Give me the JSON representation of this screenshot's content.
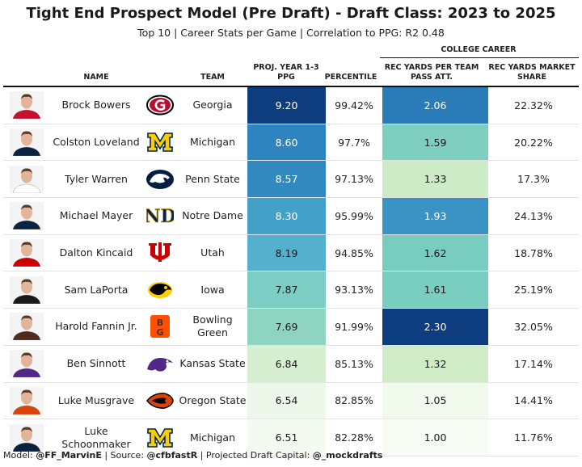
{
  "title": "Tight End Prospect Model (Pre Draft) - Draft Class: 2023 to 2025",
  "subtitle": "Top 10 | Career Stats per Game | Correlation to PPG: R2 0.48",
  "spanner": "COLLEGE CAREER",
  "headers": {
    "name": "NAME",
    "team": "TEAM",
    "proj": "PROJ. YEAR 1-3 PPG",
    "percentile": "PERCENTILE",
    "rec_yards": "REC YARDS PER TEAM PASS ATT.",
    "market_share": "REC YARDS MARKET SHARE"
  },
  "rows": [
    {
      "name": "Brock Bowers",
      "team": "Georgia",
      "logo": "georgia-logo",
      "proj": "9.20",
      "proj_bg": "#0d3c7f",
      "proj_fg": "#ffffff",
      "percentile": "99.42%",
      "rec": "2.06",
      "rec_bg": "#2a7cb8",
      "rec_fg": "#ffffff",
      "share": "22.32%",
      "jersey": "#c8102e"
    },
    {
      "name": "Colston Loveland",
      "team": "Michigan",
      "logo": "michigan-logo",
      "proj": "8.60",
      "proj_bg": "#2e84be",
      "proj_fg": "#ffffff",
      "percentile": "97.7%",
      "rec": "1.59",
      "rec_bg": "#7ecfbf",
      "rec_fg": "#1a1a1a",
      "share": "20.22%",
      "jersey": "#0a2240"
    },
    {
      "name": "Tyler Warren",
      "team": "Penn State",
      "logo": "penn-state-logo",
      "proj": "8.57",
      "proj_bg": "#3189c0",
      "proj_fg": "#ffffff",
      "percentile": "97.13%",
      "rec": "1.33",
      "rec_bg": "#cdebc6",
      "rec_fg": "#1a1a1a",
      "share": "17.3%",
      "jersey": "#ffffff"
    },
    {
      "name": "Michael Mayer",
      "team": "Notre Dame",
      "logo": "notre-dame-logo",
      "proj": "8.30",
      "proj_bg": "#43a0c9",
      "proj_fg": "#ffffff",
      "percentile": "95.99%",
      "rec": "1.93",
      "rec_bg": "#3a93c4",
      "rec_fg": "#ffffff",
      "share": "24.13%",
      "jersey": "#0c2340"
    },
    {
      "name": "Dalton Kincaid",
      "team": "Utah",
      "logo": "utah-logo",
      "proj": "8.19",
      "proj_bg": "#55b0cd",
      "proj_fg": "#1a1a1a",
      "percentile": "94.85%",
      "rec": "1.62",
      "rec_bg": "#78cdc0",
      "rec_fg": "#1a1a1a",
      "share": "18.78%",
      "jersey": "#cc0000"
    },
    {
      "name": "Sam LaPorta",
      "team": "Iowa",
      "logo": "iowa-logo",
      "proj": "7.87",
      "proj_bg": "#7ccdc3",
      "proj_fg": "#1a1a1a",
      "percentile": "93.13%",
      "rec": "1.61",
      "rec_bg": "#7acec0",
      "rec_fg": "#1a1a1a",
      "share": "25.19%",
      "jersey": "#1a1a1a"
    },
    {
      "name": "Harold Fannin Jr.",
      "team": "Bowling Green",
      "logo": "bowling-green-logo",
      "proj": "7.69",
      "proj_bg": "#8fd4c0",
      "proj_fg": "#1a1a1a",
      "percentile": "91.99%",
      "rec": "2.30",
      "rec_bg": "#0d3c7f",
      "rec_fg": "#ffffff",
      "share": "32.05%",
      "jersey": "#4f2c1d"
    },
    {
      "name": "Ben Sinnott",
      "team": "Kansas State",
      "logo": "kansas-state-logo",
      "proj": "6.84",
      "proj_bg": "#d6efd0",
      "proj_fg": "#1a1a1a",
      "percentile": "85.13%",
      "rec": "1.32",
      "rec_bg": "#cfecc7",
      "rec_fg": "#1a1a1a",
      "share": "17.14%",
      "jersey": "#512888"
    },
    {
      "name": "Luke Musgrave",
      "team": "Oregon State",
      "logo": "oregon-state-logo",
      "proj": "6.54",
      "proj_bg": "#eef8ea",
      "proj_fg": "#1a1a1a",
      "percentile": "82.85%",
      "rec": "1.05",
      "rec_bg": "#f2faee",
      "rec_fg": "#1a1a1a",
      "share": "14.41%",
      "jersey": "#dc4405"
    },
    {
      "name": "Luke Schoonmaker",
      "team": "Michigan",
      "logo": "michigan-logo",
      "proj": "6.51",
      "proj_bg": "#f3fbf0",
      "proj_fg": "#1a1a1a",
      "percentile": "82.28%",
      "rec": "1.00",
      "rec_bg": "#f7fcf5",
      "rec_fg": "#1a1a1a",
      "share": "11.76%",
      "jersey": "#0a2240"
    }
  ],
  "footer": {
    "model_label": "Model: ",
    "model": "@FF_MarvinE",
    "source_label": " | Source: ",
    "source": "@cfbfastR",
    "capital_label": " | Projected Draft Capital: ",
    "capital": "@_mockdrafts"
  }
}
